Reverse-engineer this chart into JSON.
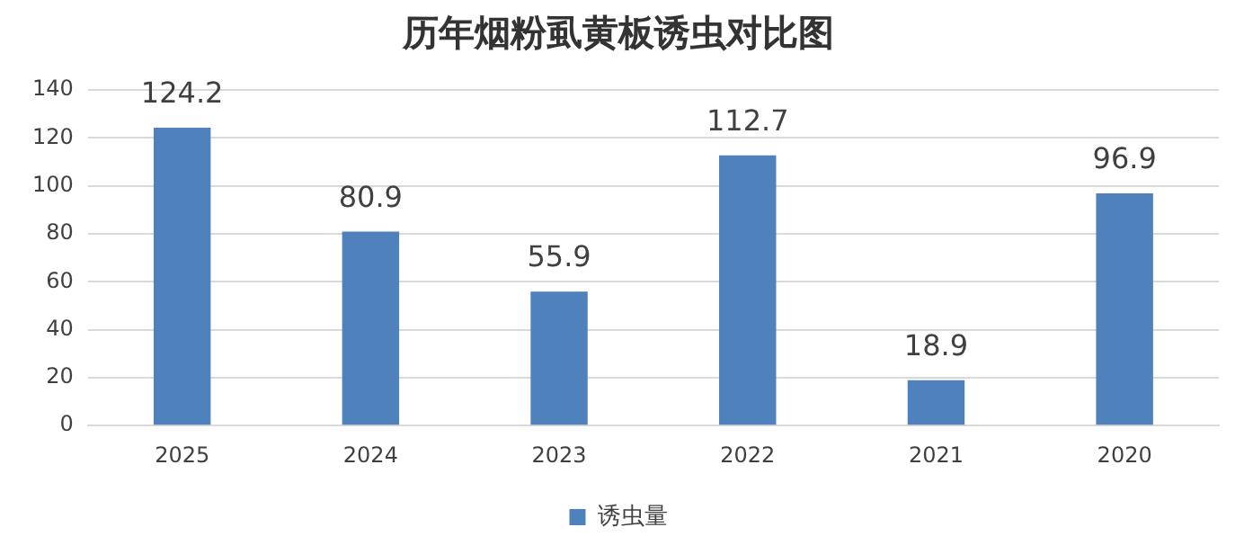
{
  "chart_data": {
    "type": "bar",
    "title": "历年烟粉虱黄板诱虫对比图",
    "categories": [
      "2025",
      "2024",
      "2023",
      "2022",
      "2021",
      "2020"
    ],
    "series": [
      {
        "name": "诱虫量",
        "color": "#4f81bd",
        "values": [
          124.2,
          80.9,
          55.9,
          112.7,
          18.9,
          96.9
        ]
      }
    ],
    "ylim": [
      0,
      140
    ],
    "yticks": [
      0,
      20,
      40,
      60,
      80,
      100,
      120,
      140
    ],
    "grid": "y",
    "legend": "bottom",
    "data_labels": true
  }
}
